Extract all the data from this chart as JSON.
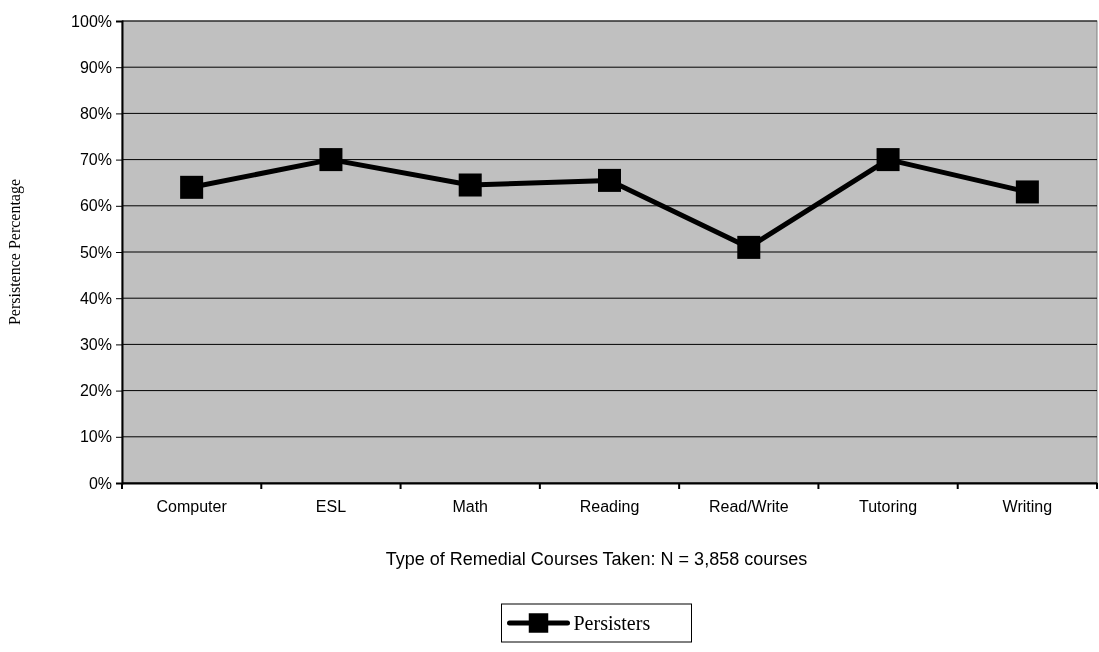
{
  "chart_data": {
    "type": "line",
    "xlabel": "Type of Remedial Courses Taken: N = 3,858 courses",
    "ylabel": "Persistence Percentage",
    "categories": [
      "Computer",
      "ESL",
      "Math",
      "Reading",
      "Read/Write",
      "Tutoring",
      "Writing"
    ],
    "series": [
      {
        "name": "Persisters",
        "color": "#000000",
        "values": [
          64,
          70,
          64.5,
          65.5,
          51,
          70,
          63
        ]
      }
    ],
    "ylim": [
      0,
      100
    ],
    "yticks": [
      {
        "value": 0,
        "label": "0%"
      },
      {
        "value": 10,
        "label": "10%"
      },
      {
        "value": 20,
        "label": "20%"
      },
      {
        "value": 30,
        "label": "30%"
      },
      {
        "value": 40,
        "label": "40%"
      },
      {
        "value": 50,
        "label": "50%"
      },
      {
        "value": 60,
        "label": "60%"
      },
      {
        "value": 70,
        "label": "70%"
      },
      {
        "value": 80,
        "label": "80%"
      },
      {
        "value": 90,
        "label": "90%"
      },
      {
        "value": 100,
        "label": "100%"
      }
    ],
    "grid": "y",
    "legend": "bottom",
    "marker": "square",
    "line_style": "solid"
  }
}
